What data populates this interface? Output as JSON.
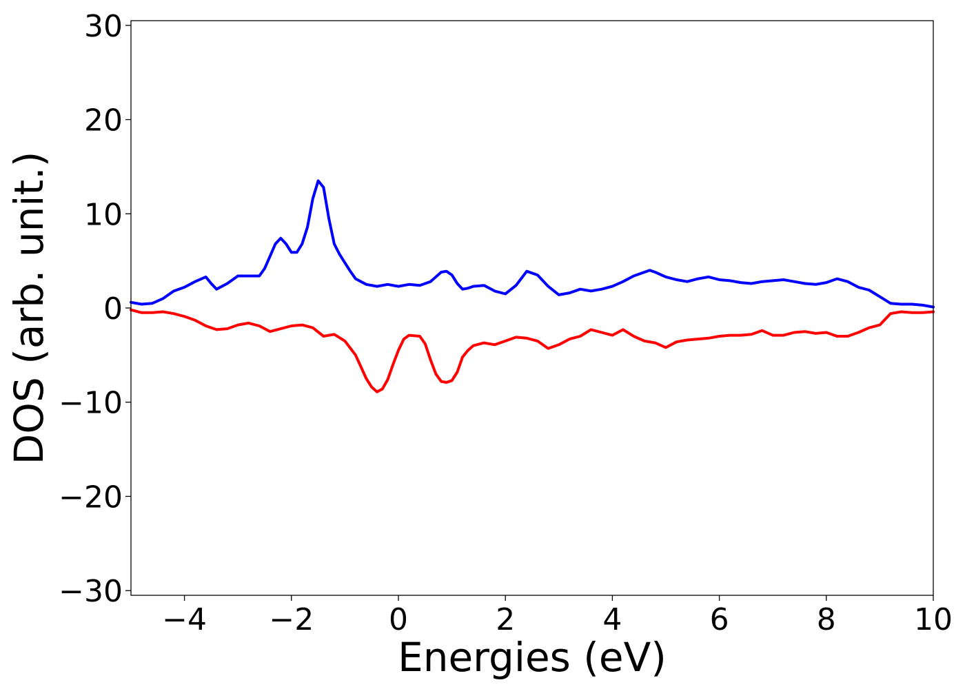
{
  "chart_data": {
    "type": "line",
    "title": "",
    "xlabel": "Energies (eV)",
    "ylabel": "DOS (arb. unit.)",
    "xlim": [
      -5,
      10
    ],
    "ylim": [
      -30.5,
      30.5
    ],
    "xticks": [
      -4,
      -2,
      0,
      2,
      4,
      6,
      8,
      10
    ],
    "xtick_labels": [
      "−4",
      "−2",
      "0",
      "2",
      "4",
      "6",
      "8",
      "10"
    ],
    "yticks": [
      -30,
      -20,
      -10,
      0,
      10,
      20,
      30
    ],
    "ytick_labels": [
      "−30",
      "−20",
      "−10",
      "0",
      "10",
      "20",
      "30"
    ],
    "grid": false,
    "legend": "none",
    "series": [
      {
        "color": "#0000ff",
        "x": [
          -5,
          -4.8,
          -4.6,
          -4.4,
          -4.2,
          -4.0,
          -3.8,
          -3.6,
          -3.5,
          -3.4,
          -3.2,
          -3.0,
          -2.8,
          -2.6,
          -2.5,
          -2.4,
          -2.3,
          -2.2,
          -2.1,
          -2.0,
          -1.9,
          -1.8,
          -1.7,
          -1.6,
          -1.5,
          -1.4,
          -1.3,
          -1.2,
          -1.1,
          -1.0,
          -0.9,
          -0.8,
          -0.6,
          -0.4,
          -0.2,
          0.0,
          0.2,
          0.4,
          0.6,
          0.8,
          0.9,
          1.0,
          1.1,
          1.2,
          1.3,
          1.4,
          1.6,
          1.8,
          2.0,
          2.2,
          2.4,
          2.6,
          2.8,
          3.0,
          3.2,
          3.4,
          3.6,
          3.8,
          4.0,
          4.2,
          4.4,
          4.6,
          4.7,
          4.8,
          5.0,
          5.2,
          5.4,
          5.6,
          5.8,
          6.0,
          6.2,
          6.4,
          6.6,
          6.8,
          7.0,
          7.2,
          7.4,
          7.6,
          7.8,
          8.0,
          8.2,
          8.4,
          8.6,
          8.8,
          9.0,
          9.2,
          9.4,
          9.6,
          9.8,
          10.0
        ],
        "y": [
          0.6,
          0.4,
          0.5,
          1.0,
          1.8,
          2.2,
          2.8,
          3.3,
          2.6,
          2.0,
          2.6,
          3.4,
          3.4,
          3.4,
          4.2,
          5.5,
          6.8,
          7.4,
          6.8,
          5.9,
          5.9,
          6.8,
          8.6,
          11.6,
          13.5,
          12.8,
          9.5,
          6.8,
          5.7,
          4.8,
          3.9,
          3.1,
          2.5,
          2.3,
          2.5,
          2.3,
          2.5,
          2.4,
          2.8,
          3.8,
          3.9,
          3.5,
          2.6,
          2.0,
          2.1,
          2.3,
          2.4,
          1.8,
          1.5,
          2.4,
          3.9,
          3.5,
          2.3,
          1.4,
          1.6,
          2.0,
          1.8,
          2.0,
          2.3,
          2.8,
          3.4,
          3.8,
          4.0,
          3.8,
          3.3,
          3.0,
          2.8,
          3.1,
          3.3,
          3.0,
          2.9,
          2.7,
          2.6,
          2.8,
          2.9,
          3.0,
          2.8,
          2.6,
          2.5,
          2.7,
          3.1,
          2.8,
          2.2,
          1.9,
          1.2,
          0.5,
          0.4,
          0.4,
          0.3,
          0.1
        ]
      },
      {
        "color": "#ff0000",
        "x": [
          -5,
          -4.8,
          -4.6,
          -4.4,
          -4.2,
          -4.0,
          -3.8,
          -3.6,
          -3.4,
          -3.2,
          -3.0,
          -2.8,
          -2.6,
          -2.4,
          -2.2,
          -2.0,
          -1.8,
          -1.6,
          -1.4,
          -1.2,
          -1.0,
          -0.8,
          -0.6,
          -0.5,
          -0.4,
          -0.3,
          -0.2,
          -0.1,
          0.0,
          0.1,
          0.2,
          0.4,
          0.5,
          0.6,
          0.7,
          0.8,
          0.9,
          1.0,
          1.1,
          1.2,
          1.3,
          1.4,
          1.6,
          1.8,
          2.0,
          2.2,
          2.4,
          2.6,
          2.8,
          3.0,
          3.2,
          3.4,
          3.6,
          3.8,
          4.0,
          4.2,
          4.4,
          4.6,
          4.8,
          5.0,
          5.2,
          5.4,
          5.6,
          5.8,
          6.0,
          6.2,
          6.4,
          6.6,
          6.8,
          7.0,
          7.2,
          7.4,
          7.6,
          7.8,
          8.0,
          8.2,
          8.4,
          8.6,
          8.8,
          9.0,
          9.2,
          9.4,
          9.6,
          9.8,
          10.0
        ],
        "y": [
          -0.2,
          -0.5,
          -0.5,
          -0.4,
          -0.6,
          -0.9,
          -1.3,
          -1.9,
          -2.3,
          -2.2,
          -1.8,
          -1.6,
          -1.9,
          -2.5,
          -2.2,
          -1.9,
          -1.8,
          -2.1,
          -3.0,
          -2.8,
          -3.5,
          -5.0,
          -7.5,
          -8.4,
          -8.9,
          -8.6,
          -7.6,
          -6.0,
          -4.5,
          -3.3,
          -2.9,
          -3.0,
          -3.8,
          -5.5,
          -7.0,
          -7.8,
          -7.9,
          -7.7,
          -6.8,
          -5.2,
          -4.5,
          -4.0,
          -3.7,
          -3.9,
          -3.5,
          -3.1,
          -3.2,
          -3.5,
          -4.3,
          -3.9,
          -3.3,
          -3.0,
          -2.3,
          -2.6,
          -2.9,
          -2.3,
          -3.0,
          -3.5,
          -3.7,
          -4.2,
          -3.6,
          -3.4,
          -3.3,
          -3.2,
          -3.0,
          -2.9,
          -2.9,
          -2.8,
          -2.4,
          -2.9,
          -2.9,
          -2.6,
          -2.5,
          -2.7,
          -2.6,
          -3.0,
          -3.0,
          -2.6,
          -2.1,
          -1.8,
          -0.6,
          -0.4,
          -0.5,
          -0.5,
          -0.4
        ]
      }
    ]
  }
}
